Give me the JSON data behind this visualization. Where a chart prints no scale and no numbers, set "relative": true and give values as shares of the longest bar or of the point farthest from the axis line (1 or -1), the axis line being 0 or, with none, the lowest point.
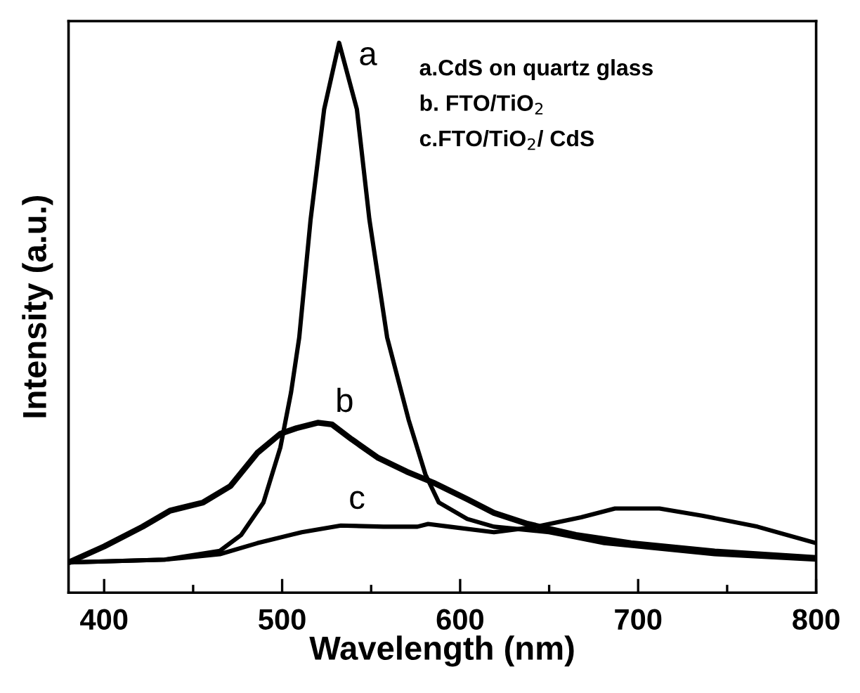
{
  "chart_data": {
    "type": "line",
    "relative": true,
    "xlabel": "Wavelength (nm)",
    "ylabel": "Intensity (a.u.)",
    "xlim": [
      380,
      800
    ],
    "xticks": [
      400,
      {
        "value": 450,
        "label": null
      },
      500,
      {
        "value": 550,
        "label": null
      },
      600,
      {
        "value": 650,
        "label": null
      },
      700,
      {
        "value": 750,
        "label": null
      },
      800
    ],
    "grid": false,
    "legend": false,
    "marker": "none",
    "line_style": "solid",
    "series": [
      {
        "name": "a",
        "color": "#000000",
        "x": [
          380,
          434,
          465,
          477,
          489.5,
          499,
          505,
          509.6,
          516,
          523.6,
          532,
          542,
          549,
          559,
          571,
          580.5,
          588,
          604,
          619,
          650,
          681,
          743,
          800
        ],
        "values": [
          0.055,
          0.06,
          0.076,
          0.105,
          0.164,
          0.264,
          0.364,
          0.464,
          0.679,
          0.879,
          1.0,
          0.879,
          0.679,
          0.464,
          0.315,
          0.215,
          0.164,
          0.134,
          0.12,
          0.11,
          0.09,
          0.07,
          0.06
        ]
      },
      {
        "name": "b",
        "color": "#000000",
        "x": [
          380,
          400,
          421.6,
          437,
          455.6,
          471,
          486,
          499,
          508,
          520,
          528,
          539,
          554,
          570,
          585,
          604,
          619,
          638,
          665,
          696,
          743,
          800
        ],
        "values": [
          0.055,
          0.084,
          0.12,
          0.149,
          0.164,
          0.194,
          0.254,
          0.289,
          0.299,
          0.309,
          0.306,
          0.279,
          0.245,
          0.22,
          0.2,
          0.17,
          0.145,
          0.125,
          0.105,
          0.09,
          0.075,
          0.063
        ]
      },
      {
        "name": "c",
        "color": "#000000",
        "x": [
          380,
          434,
          465,
          486,
          511,
          533,
          557,
          576,
          582,
          594,
          619,
          643,
          668,
          687,
          712,
          736,
          767,
          800
        ],
        "values": [
          0.055,
          0.06,
          0.07,
          0.09,
          0.11,
          0.122,
          0.12,
          0.12,
          0.125,
          0.12,
          0.11,
          0.12,
          0.137,
          0.153,
          0.153,
          0.14,
          0.12,
          0.09
        ]
      }
    ],
    "annotations": [
      "a.CdS on quartz glass",
      "b. FTO/TiO$_{2}$",
      "c.FTO/TiO$_{2}$/ CdS"
    ]
  }
}
